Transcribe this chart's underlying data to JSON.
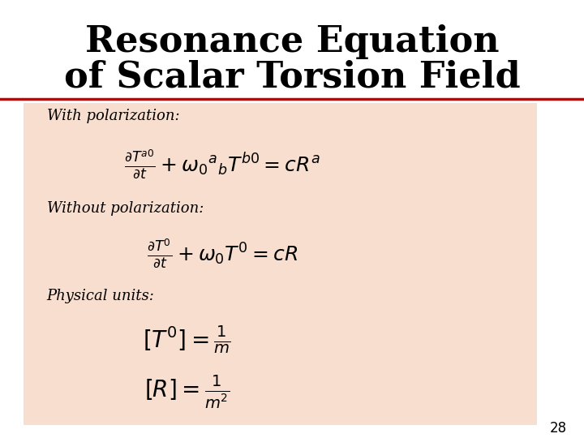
{
  "title_line1": "Resonance Equation",
  "title_line2": "of Scalar Torsion Field",
  "title_fontsize": 32,
  "title_color": "#000000",
  "title_font": "serif",
  "separator_color": "#cc0000",
  "background_color": "#ffffff",
  "content_bg_color": "#f7dece",
  "label_with": "With polarization:",
  "label_without": "Without polarization:",
  "label_physical": "Physical units:",
  "label_fontsize": 13,
  "eq_fontsize": 16,
  "page_number": "28",
  "page_number_fontsize": 12
}
